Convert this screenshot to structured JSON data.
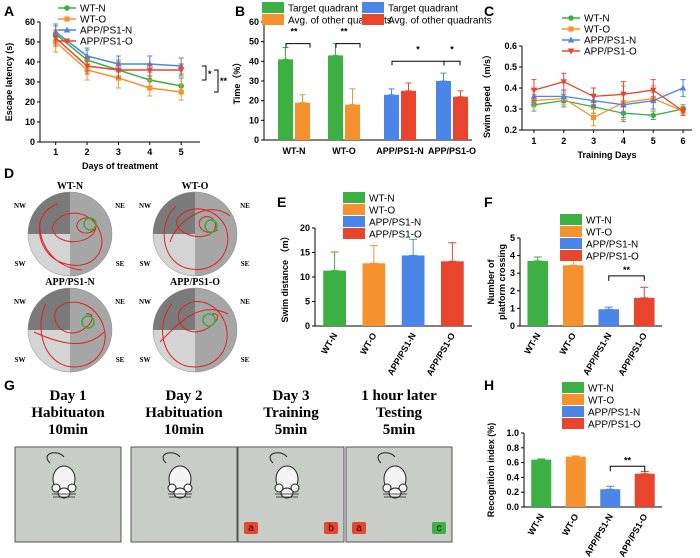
{
  "colors": {
    "wt_n": "#3cb043",
    "wt_o": "#f5922e",
    "app_n": "#4a86e8",
    "app_o": "#e8452c",
    "pool_dark": "#7a7a7a",
    "pool_mid": "#a6a6a6",
    "pool_light": "#d4d4d4",
    "path": "#e02020",
    "platform": "#2fb22f",
    "box": "#c8cdc8"
  },
  "panel_labels": {
    "A": "A",
    "B": "B",
    "C": "C",
    "D": "D",
    "E": "E",
    "F": "F",
    "G": "G",
    "H": "H"
  },
  "chart_data": [
    {
      "id": "A",
      "type": "line",
      "title": "",
      "xlabel": "Days of treatment",
      "ylabel": "Escape latency (s)",
      "x": [
        1,
        2,
        3,
        4,
        5
      ],
      "xlim": [
        0.5,
        5.6
      ],
      "ylim": [
        0,
        60
      ],
      "xticks": [
        "1",
        "2",
        "3",
        "4",
        "5"
      ],
      "yticks": [
        "0",
        "10",
        "20",
        "30",
        "40",
        "50",
        "60"
      ],
      "legend": [
        "WT-N",
        "WT-O",
        "APP/PS1-N",
        "APP/PS1-O"
      ],
      "series": [
        {
          "name": "WT-N",
          "values": [
            54,
            41,
            36,
            31,
            28
          ],
          "errors": [
            4,
            5,
            5,
            5,
            4
          ]
        },
        {
          "name": "WT-O",
          "values": [
            50,
            36,
            32,
            27,
            25
          ],
          "errors": [
            5,
            5,
            5,
            4,
            4
          ]
        },
        {
          "name": "APP/PS1-N",
          "values": [
            55,
            43,
            39,
            39,
            38
          ],
          "errors": [
            4,
            4,
            4,
            4,
            4
          ]
        },
        {
          "name": "APP/PS1-O",
          "values": [
            52,
            38,
            36,
            36,
            36
          ],
          "errors": [
            4,
            4,
            4,
            3,
            3
          ]
        }
      ],
      "annotations": [
        "*",
        "**"
      ]
    },
    {
      "id": "B",
      "type": "bar",
      "ylabel": "Time（%）",
      "categories": [
        "WT-N",
        "WT-O",
        "APP/PS1-N",
        "APP/PS1-O"
      ],
      "ylim": [
        0,
        60
      ],
      "yticks": [
        "0",
        "10",
        "20",
        "30",
        "40",
        "50",
        "60"
      ],
      "legend": [
        "Target quadrant",
        "Avg. of other quadrants",
        "Target quadrant",
        "Avg. of other quadrants"
      ],
      "series": [
        {
          "name": "Target quadrant",
          "values": [
            41,
            43,
            23,
            30
          ],
          "errors": [
            6,
            6,
            3,
            4
          ]
        },
        {
          "name": "Avg. of other quadrants",
          "values": [
            19,
            18,
            25,
            22
          ],
          "errors": [
            4,
            8,
            4,
            3
          ]
        }
      ],
      "annotations": [
        "**",
        "**",
        "*",
        "*"
      ]
    },
    {
      "id": "C",
      "type": "line",
      "xlabel": "Training Days",
      "ylabel": "Swim speed （m/s）",
      "x": [
        1,
        2,
        3,
        4,
        5,
        6
      ],
      "ylim": [
        0.2,
        0.6
      ],
      "xticks": [
        "1",
        "2",
        "3",
        "4",
        "5",
        "6"
      ],
      "yticks": [
        "0.2",
        "0.3",
        "0.4",
        "0.5",
        "0.6"
      ],
      "legend": [
        "WT-N",
        "WT-O",
        "APP/PS1-N",
        "APP/PS1-O"
      ],
      "series": [
        {
          "name": "WT-N",
          "values": [
            0.32,
            0.34,
            0.31,
            0.28,
            0.27,
            0.3
          ],
          "errors": [
            0.03,
            0.03,
            0.03,
            0.04,
            0.02,
            0.02
          ]
        },
        {
          "name": "WT-O",
          "values": [
            0.34,
            0.35,
            0.26,
            0.33,
            0.35,
            0.29
          ],
          "errors": [
            0.03,
            0.03,
            0.04,
            0.08,
            0.06,
            0.02
          ]
        },
        {
          "name": "APP/PS1-N",
          "values": [
            0.36,
            0.36,
            0.34,
            0.32,
            0.34,
            0.4
          ],
          "errors": [
            0.03,
            0.03,
            0.03,
            0.06,
            0.04,
            0.04
          ]
        },
        {
          "name": "APP/PS1-O",
          "values": [
            0.39,
            0.43,
            0.36,
            0.37,
            0.39,
            0.29
          ],
          "errors": [
            0.05,
            0.04,
            0.04,
            0.06,
            0.05,
            0.02
          ]
        }
      ]
    },
    {
      "id": "E",
      "type": "bar",
      "ylabel": "Swim distance （m）",
      "categories": [
        "WT-N",
        "WT-O",
        "APP/PS1-N",
        "APP/PS1-O"
      ],
      "ylim": [
        0,
        20
      ],
      "yticks": [
        "0",
        "5",
        "10",
        "15",
        "20"
      ],
      "legend": [
        "WT-N",
        "WT-O",
        "APP/PS1-N",
        "APP/PS1-O"
      ],
      "values": [
        11.3,
        12.8,
        14.4,
        13.2
      ],
      "errors": [
        3.8,
        3.6,
        3.3,
        3.8
      ]
    },
    {
      "id": "F",
      "type": "bar",
      "ylabel": "Number of platform crossing",
      "categories": [
        "WT-N",
        "WT-O",
        "APP/PS1-N",
        "APP/PS1-O"
      ],
      "ylim": [
        0,
        5
      ],
      "yticks": [
        "0",
        "1",
        "2",
        "3",
        "4",
        "5"
      ],
      "legend": [
        "WT-N",
        "WT-O",
        "APP/PS1-N",
        "APP/PS1-O"
      ],
      "values": [
        3.7,
        3.45,
        0.95,
        1.6
      ],
      "errors": [
        0.22,
        0.45,
        0.12,
        0.6
      ],
      "annotations": [
        "**"
      ]
    },
    {
      "id": "H",
      "type": "bar",
      "ylabel": "Recognition index (%)",
      "categories": [
        "WT-N",
        "WT-O",
        "APP/PS1-N",
        "APP/PS1-O"
      ],
      "ylim": [
        0,
        1.0
      ],
      "yticks": [
        "0.0",
        "0.2",
        "0.4",
        "0.6",
        "0.8",
        "1.0"
      ],
      "legend": [
        "WT-N",
        "WT-O",
        "APP/PS1-N",
        "APP/PS1-O"
      ],
      "values": [
        0.64,
        0.68,
        0.24,
        0.45
      ],
      "errors": [
        0.01,
        0.01,
        0.04,
        0.03
      ],
      "annotations": [
        "**"
      ]
    }
  ],
  "panel_D": {
    "quadrants": [
      "NW",
      "NE",
      "SW",
      "SE"
    ],
    "pools": [
      {
        "title": "WT-N"
      },
      {
        "title": "WT-O"
      },
      {
        "title": "APP/PS1-N"
      },
      {
        "title": "APP/PS1-O"
      }
    ]
  },
  "panel_G": {
    "stages": [
      {
        "line1": "Day 1",
        "line2": "Habituaton",
        "line3": "10min",
        "objects": []
      },
      {
        "line1": "Day 2",
        "line2": "Habituation",
        "line3": "10min",
        "objects": []
      },
      {
        "line1": "Day 3",
        "line2": "Training",
        "line3": "5min",
        "objects": [
          "a",
          "b"
        ]
      },
      {
        "line1": "1 hour later",
        "line2": "Testing",
        "line3": "5min",
        "objects": [
          "a",
          "c"
        ]
      }
    ]
  }
}
